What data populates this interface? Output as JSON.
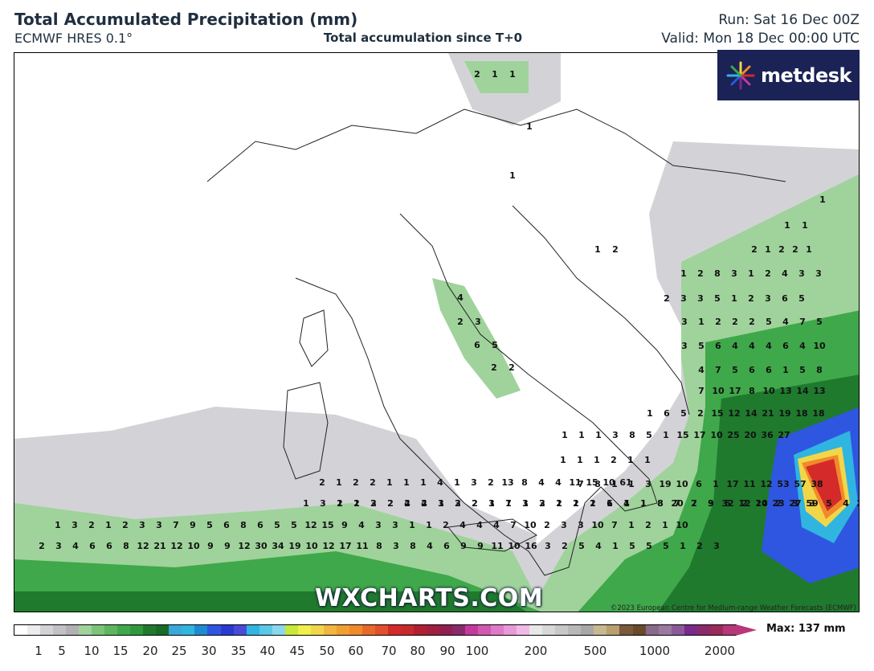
{
  "header": {
    "title": "Total Accumulated Precipitation (mm)",
    "model": "ECMWF HRES 0.1°",
    "subtitle": "Total accumulation since T+0",
    "run": "Run: Sat 16 Dec 00Z",
    "valid": "Valid: Mon 18 Dec 00:00 UTC"
  },
  "logo": {
    "text": "metdesk",
    "icon": "flower-burst-icon"
  },
  "watermark": "WXCHARTS.COM",
  "copyright": "©2023 European Centre for Medium-range Weather Forecasts (ECMWF)",
  "legend": {
    "max_label": "Max: 137 mm",
    "ticks": [
      "1",
      "5",
      "10",
      "15",
      "20",
      "25",
      "30",
      "35",
      "40",
      "45",
      "50",
      "60",
      "70",
      "80",
      "90",
      "100",
      "200",
      "500",
      "1000",
      "2000"
    ],
    "colors": {
      "gray": "#d3d3d7",
      "light_green": "#9fd39b",
      "green": "#3fa84a",
      "dark_green": "#1f7a2e",
      "blue": "#2f56e0",
      "cyan": "#2fb5e0",
      "yellow": "#f2d64a",
      "orange": "#f08a2a",
      "red": "#d42a2a",
      "magenta": "#c43a9a",
      "brown": "#7a5a3a",
      "purple": "#7a2a8a"
    }
  },
  "map_values": [
    [
      "2",
      "1",
      "1"
    ],
    [
      "1"
    ],
    [
      "1"
    ],
    [
      "1"
    ],
    [
      "1",
      "1"
    ],
    [
      "1",
      "2"
    ],
    [
      "2",
      "1",
      "2",
      "2",
      "1"
    ],
    [
      "1",
      "2",
      "8",
      "3",
      "1",
      "2",
      "4",
      "3",
      "3"
    ],
    [
      "2",
      "3",
      "3",
      "5",
      "1",
      "2",
      "3",
      "6",
      "5"
    ],
    [
      "4"
    ],
    [
      "2",
      "3"
    ],
    [
      "6",
      "5"
    ],
    [
      "2",
      "2"
    ],
    [
      "3",
      "1",
      "2",
      "2",
      "2",
      "5",
      "4",
      "7",
      "5"
    ],
    [
      "3",
      "5",
      "6",
      "4",
      "4",
      "4",
      "6",
      "4",
      "10"
    ],
    [
      "4",
      "7",
      "5",
      "6",
      "6",
      "1",
      "5",
      "8"
    ],
    [
      "7",
      "10",
      "17",
      "8",
      "10",
      "13",
      "14",
      "13"
    ],
    [
      "1",
      "6",
      "5",
      "2",
      "15",
      "12",
      "14",
      "21",
      "19",
      "18",
      "18"
    ],
    [
      "1",
      "1",
      "1",
      "3",
      "8",
      "5",
      "1",
      "15",
      "17",
      "10",
      "25",
      "20",
      "36",
      "27"
    ],
    [
      "1",
      "1",
      "1",
      "2",
      "1",
      "1"
    ],
    [
      "7",
      "8",
      "1",
      "1",
      "3",
      "19",
      "10",
      "6",
      "1",
      "17",
      "11",
      "12",
      "53",
      "57",
      "38"
    ],
    [
      "2",
      "1",
      "2",
      "2",
      "1",
      "1",
      "1",
      "4",
      "1",
      "3",
      "2",
      "13",
      "8",
      "4",
      "4",
      "11",
      "15",
      "10",
      "61"
    ],
    [
      "2",
      "1",
      "2",
      "2",
      "4",
      "2",
      "1",
      "3",
      "2",
      "1",
      "1",
      "1",
      "2",
      "1",
      "1",
      "2",
      "6",
      "4",
      "1",
      "8",
      "7",
      "7",
      "9",
      "32",
      "12",
      "20",
      "23",
      "27",
      "59"
    ],
    [
      "1",
      "3",
      "1",
      "2",
      "3",
      "2",
      "2",
      "4",
      "3",
      "2",
      "2",
      "3",
      "7",
      "3",
      "3",
      "2",
      "2",
      "1",
      "1",
      "1",
      "1",
      "8",
      "20",
      "2",
      "3",
      "5",
      "2",
      "14",
      "2",
      "3",
      "3",
      "5",
      "4",
      "21",
      "21",
      "2",
      "10",
      "18",
      "48",
      "23"
    ],
    [
      "1",
      "3",
      "2",
      "1",
      "2",
      "3",
      "3",
      "7",
      "9",
      "5",
      "6",
      "8",
      "6",
      "5",
      "5",
      "12",
      "15",
      "9",
      "4",
      "3",
      "3",
      "1",
      "1",
      "2",
      "4",
      "4",
      "4",
      "7",
      "10",
      "2",
      "3",
      "3",
      "10",
      "7",
      "1",
      "2",
      "1",
      "10"
    ],
    [
      "2",
      "3",
      "4",
      "6",
      "6",
      "8",
      "12",
      "21",
      "12",
      "10",
      "9",
      "9",
      "12",
      "30",
      "34",
      "19",
      "10",
      "12",
      "17",
      "11",
      "8",
      "3",
      "8",
      "4",
      "6",
      "9",
      "9",
      "11",
      "10",
      "16",
      "3",
      "2",
      "5",
      "4",
      "1",
      "5",
      "5",
      "5",
      "1",
      "2",
      "3"
    ]
  ]
}
